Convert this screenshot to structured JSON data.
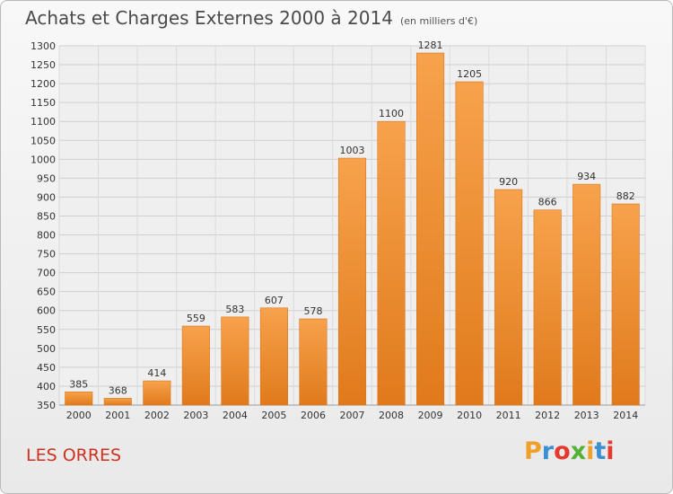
{
  "chart_data": {
    "type": "bar",
    "title": "Achats et Charges Externes 2000 à 2014",
    "subtitle": "(en milliers d'€)",
    "categories": [
      "2000",
      "2001",
      "2002",
      "2003",
      "2004",
      "2005",
      "2006",
      "2007",
      "2008",
      "2009",
      "2010",
      "2011",
      "2012",
      "2013",
      "2014"
    ],
    "values": [
      385,
      368,
      414,
      559,
      583,
      607,
      578,
      1003,
      1100,
      1281,
      1205,
      920,
      866,
      934,
      882
    ],
    "ylim": [
      350,
      1300
    ],
    "ytick_step": 50,
    "grid": true,
    "bar_color": "#f08f2e"
  },
  "footer": {
    "commune": "LES ORRES",
    "logo_letters": [
      "P",
      "r",
      "o",
      "x",
      "i",
      "t",
      "i"
    ],
    "logo_colors": [
      "#f0a02a",
      "#3c8fd2",
      "#e43a2f",
      "#53b233",
      "#f0a02a",
      "#3c8fd2",
      "#e43a2f"
    ]
  }
}
